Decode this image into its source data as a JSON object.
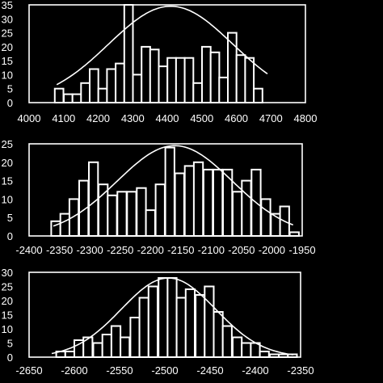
{
  "chart_data": [
    {
      "type": "bar",
      "xlim": [
        4000,
        4800
      ],
      "ylim": [
        0,
        35
      ],
      "xticks": [
        "4000",
        "4100",
        "4200",
        "4300",
        "4400",
        "4500",
        "4600",
        "4700",
        "4800"
      ],
      "yticks": [
        "0",
        "5",
        "10",
        "15",
        "20",
        "25",
        "30",
        "35"
      ],
      "grid": false,
      "bin_width": 25,
      "bins": [
        {
          "x": 4087,
          "value": 5
        },
        {
          "x": 4113,
          "value": 3
        },
        {
          "x": 4138,
          "value": 3
        },
        {
          "x": 4163,
          "value": 7
        },
        {
          "x": 4188,
          "value": 12
        },
        {
          "x": 4213,
          "value": 5
        },
        {
          "x": 4238,
          "value": 12
        },
        {
          "x": 4263,
          "value": 14
        },
        {
          "x": 4288,
          "value": 35
        },
        {
          "x": 4313,
          "value": 10
        },
        {
          "x": 4338,
          "value": 20
        },
        {
          "x": 4363,
          "value": 19
        },
        {
          "x": 4388,
          "value": 13
        },
        {
          "x": 4413,
          "value": 16
        },
        {
          "x": 4438,
          "value": 16
        },
        {
          "x": 4463,
          "value": 16
        },
        {
          "x": 4488,
          "value": 7
        },
        {
          "x": 4513,
          "value": 20
        },
        {
          "x": 4538,
          "value": 18
        },
        {
          "x": 4563,
          "value": 9
        },
        {
          "x": 4588,
          "value": 25
        },
        {
          "x": 4613,
          "value": 17
        },
        {
          "x": 4638,
          "value": 16
        },
        {
          "x": 4663,
          "value": 5
        }
      ],
      "fit": {
        "type": "gaussian",
        "mean": 4410,
        "sd": 180,
        "peak": 34.5,
        "range": [
          4080,
          4690
        ]
      }
    },
    {
      "type": "bar",
      "xlim": [
        -2400,
        -1950
      ],
      "ylim": [
        0,
        25
      ],
      "xticks": [
        "-2400",
        "-2350",
        "-2300",
        "-2250",
        "-2200",
        "-2150",
        "-2100",
        "-2050",
        "-2000",
        "-1950"
      ],
      "yticks": [
        "0",
        "5",
        "10",
        "15",
        "20",
        "25"
      ],
      "grid": false,
      "bin_width": 15,
      "bins": [
        {
          "x": -2356,
          "value": 4
        },
        {
          "x": -2341,
          "value": 6
        },
        {
          "x": -2326,
          "value": 10
        },
        {
          "x": -2310,
          "value": 15
        },
        {
          "x": -2294,
          "value": 20
        },
        {
          "x": -2278,
          "value": 14
        },
        {
          "x": -2263,
          "value": 11
        },
        {
          "x": -2247,
          "value": 12
        },
        {
          "x": -2231,
          "value": 12
        },
        {
          "x": -2215,
          "value": 13
        },
        {
          "x": -2200,
          "value": 7
        },
        {
          "x": -2184,
          "value": 14
        },
        {
          "x": -2168,
          "value": 24
        },
        {
          "x": -2152,
          "value": 17
        },
        {
          "x": -2136,
          "value": 19
        },
        {
          "x": -2121,
          "value": 20
        },
        {
          "x": -2105,
          "value": 18
        },
        {
          "x": -2089,
          "value": 18
        },
        {
          "x": -2073,
          "value": 18
        },
        {
          "x": -2057,
          "value": 12
        },
        {
          "x": -2042,
          "value": 15
        },
        {
          "x": -2026,
          "value": 18
        },
        {
          "x": -2010,
          "value": 10
        },
        {
          "x": -1994,
          "value": 6
        },
        {
          "x": -1979,
          "value": 8
        },
        {
          "x": -1963,
          "value": 1
        }
      ],
      "fit": {
        "type": "gaussian",
        "mean": -2160,
        "sd": 95,
        "peak": 24.5,
        "range": [
          -2360,
          -1965
        ]
      }
    },
    {
      "type": "bar",
      "xlim": [
        -2650,
        -2350
      ],
      "ylim": [
        0,
        30
      ],
      "xticks": [
        "-2650",
        "-2600",
        "-2550",
        "-2500",
        "-2450",
        "-2400",
        "-2350"
      ],
      "yticks": [
        "0",
        "5",
        "10",
        "15",
        "20",
        "25",
        "30"
      ],
      "grid": false,
      "bin_width": 10,
      "bins": [
        {
          "x": -2615,
          "value": 2
        },
        {
          "x": -2605,
          "value": 2
        },
        {
          "x": -2595,
          "value": 6
        },
        {
          "x": -2585,
          "value": 7
        },
        {
          "x": -2574,
          "value": 5
        },
        {
          "x": -2564,
          "value": 8
        },
        {
          "x": -2554,
          "value": 11
        },
        {
          "x": -2544,
          "value": 7
        },
        {
          "x": -2533,
          "value": 14
        },
        {
          "x": -2523,
          "value": 21
        },
        {
          "x": -2513,
          "value": 25
        },
        {
          "x": -2502,
          "value": 28
        },
        {
          "x": -2492,
          "value": 28
        },
        {
          "x": -2482,
          "value": 21
        },
        {
          "x": -2472,
          "value": 24
        },
        {
          "x": -2461,
          "value": 22
        },
        {
          "x": -2451,
          "value": 25
        },
        {
          "x": -2441,
          "value": 16
        },
        {
          "x": -2431,
          "value": 11
        },
        {
          "x": -2420,
          "value": 7
        },
        {
          "x": -2410,
          "value": 5
        },
        {
          "x": -2400,
          "value": 5
        },
        {
          "x": -2390,
          "value": 2
        },
        {
          "x": -2379,
          "value": 1
        },
        {
          "x": -2369,
          "value": 1
        },
        {
          "x": -2359,
          "value": 1
        }
      ],
      "fit": {
        "type": "gaussian",
        "mean": -2496,
        "sd": 52,
        "peak": 28,
        "range": [
          -2625,
          -2358
        ]
      }
    }
  ]
}
